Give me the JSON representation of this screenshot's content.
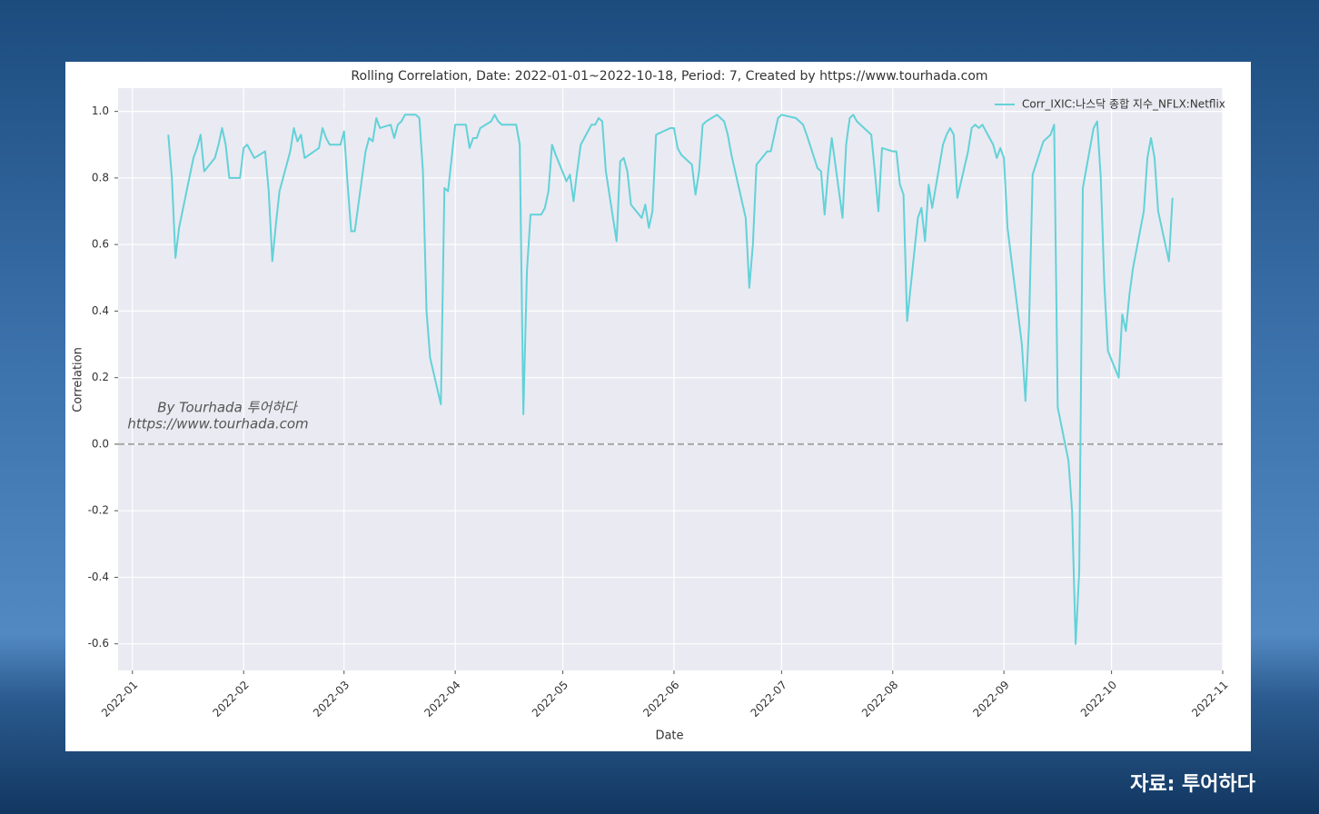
{
  "chart_data": {
    "type": "line",
    "title": "Rolling Correlation, Date: 2022-01-01~2022-10-18, Period: 7, Created by https://www.tourhada.com",
    "xlabel": "Date",
    "ylabel": "Correlation",
    "watermark": [
      "By Tourhada 투어하다",
      "https://www.tourhada.com"
    ],
    "source": "자료: 투어하다",
    "legend": "upper right",
    "grid": true,
    "hline": {
      "value": 0,
      "color": "#a8a8a8",
      "style": "dashed"
    },
    "xlim": [
      "2021-12-28",
      "2022-11-01"
    ],
    "xticks": [
      {
        "value": "2022-01-01",
        "label": "2022-01"
      },
      {
        "value": "2022-02-01",
        "label": "2022-02"
      },
      {
        "value": "2022-03-01",
        "label": "2022-03"
      },
      {
        "value": "2022-04-01",
        "label": "2022-04"
      },
      {
        "value": "2022-05-01",
        "label": "2022-05"
      },
      {
        "value": "2022-06-01",
        "label": "2022-06"
      },
      {
        "value": "2022-07-01",
        "label": "2022-07"
      },
      {
        "value": "2022-08-01",
        "label": "2022-08"
      },
      {
        "value": "2022-09-01",
        "label": "2022-09"
      },
      {
        "value": "2022-10-01",
        "label": "2022-10"
      },
      {
        "value": "2022-11-01",
        "label": "2022-11"
      }
    ],
    "ylim": [
      -0.68,
      1.07
    ],
    "yticks": [
      -0.6,
      -0.4,
      -0.2,
      {
        "value": 0,
        "label": "0.0"
      },
      0.2,
      0.4,
      0.6,
      0.8,
      {
        "value": 1,
        "label": "1.0"
      }
    ],
    "x": [
      "2022-01-11",
      "2022-01-12",
      "2022-01-13",
      "2022-01-14",
      "2022-01-18",
      "2022-01-19",
      "2022-01-20",
      "2022-01-21",
      "2022-01-24",
      "2022-01-25",
      "2022-01-26",
      "2022-01-27",
      "2022-01-28",
      "2022-01-31",
      "2022-02-01",
      "2022-02-02",
      "2022-02-03",
      "2022-02-04",
      "2022-02-07",
      "2022-02-08",
      "2022-02-09",
      "2022-02-10",
      "2022-02-11",
      "2022-02-14",
      "2022-02-15",
      "2022-02-16",
      "2022-02-17",
      "2022-02-18",
      "2022-02-22",
      "2022-02-23",
      "2022-02-24",
      "2022-02-25",
      "2022-02-28",
      "2022-03-01",
      "2022-03-02",
      "2022-03-03",
      "2022-03-04",
      "2022-03-07",
      "2022-03-08",
      "2022-03-09",
      "2022-03-10",
      "2022-03-11",
      "2022-03-14",
      "2022-03-15",
      "2022-03-16",
      "2022-03-17",
      "2022-03-18",
      "2022-03-21",
      "2022-03-22",
      "2022-03-23",
      "2022-03-24",
      "2022-03-25",
      "2022-03-28",
      "2022-03-29",
      "2022-03-30",
      "2022-03-31",
      "2022-04-01",
      "2022-04-04",
      "2022-04-05",
      "2022-04-06",
      "2022-04-07",
      "2022-04-08",
      "2022-04-11",
      "2022-04-12",
      "2022-04-13",
      "2022-04-14",
      "2022-04-18",
      "2022-04-19",
      "2022-04-20",
      "2022-04-21",
      "2022-04-22",
      "2022-04-25",
      "2022-04-26",
      "2022-04-27",
      "2022-04-28",
      "2022-04-29",
      "2022-05-02",
      "2022-05-03",
      "2022-05-04",
      "2022-05-05",
      "2022-05-06",
      "2022-05-09",
      "2022-05-10",
      "2022-05-11",
      "2022-05-12",
      "2022-05-13",
      "2022-05-16",
      "2022-05-17",
      "2022-05-18",
      "2022-05-19",
      "2022-05-20",
      "2022-05-23",
      "2022-05-24",
      "2022-05-25",
      "2022-05-26",
      "2022-05-27",
      "2022-05-31",
      "2022-06-01",
      "2022-06-02",
      "2022-06-03",
      "2022-06-06",
      "2022-06-07",
      "2022-06-08",
      "2022-06-09",
      "2022-06-10",
      "2022-06-13",
      "2022-06-14",
      "2022-06-15",
      "2022-06-16",
      "2022-06-17",
      "2022-06-21",
      "2022-06-22",
      "2022-06-23",
      "2022-06-24",
      "2022-06-27",
      "2022-06-28",
      "2022-06-29",
      "2022-06-30",
      "2022-07-01",
      "2022-07-05",
      "2022-07-06",
      "2022-07-07",
      "2022-07-08",
      "2022-07-11",
      "2022-07-12",
      "2022-07-13",
      "2022-07-14",
      "2022-07-15",
      "2022-07-18",
      "2022-07-19",
      "2022-07-20",
      "2022-07-21",
      "2022-07-22",
      "2022-07-25",
      "2022-07-26",
      "2022-07-27",
      "2022-07-28",
      "2022-07-29",
      "2022-08-01",
      "2022-08-02",
      "2022-08-03",
      "2022-08-04",
      "2022-08-05",
      "2022-08-08",
      "2022-08-09",
      "2022-08-10",
      "2022-08-11",
      "2022-08-12",
      "2022-08-15",
      "2022-08-16",
      "2022-08-17",
      "2022-08-18",
      "2022-08-19",
      "2022-08-22",
      "2022-08-23",
      "2022-08-24",
      "2022-08-25",
      "2022-08-26",
      "2022-08-29",
      "2022-08-30",
      "2022-08-31",
      "2022-09-01",
      "2022-09-02",
      "2022-09-06",
      "2022-09-07",
      "2022-09-08",
      "2022-09-09",
      "2022-09-12",
      "2022-09-13",
      "2022-09-14",
      "2022-09-15",
      "2022-09-16",
      "2022-09-19",
      "2022-09-20",
      "2022-09-21",
      "2022-09-22",
      "2022-09-23",
      "2022-09-26",
      "2022-09-27",
      "2022-09-28",
      "2022-09-29",
      "2022-09-30",
      "2022-10-03",
      "2022-10-04",
      "2022-10-05",
      "2022-10-06",
      "2022-10-07",
      "2022-10-10",
      "2022-10-11",
      "2022-10-12",
      "2022-10-13",
      "2022-10-14",
      "2022-10-17",
      "2022-10-18"
    ],
    "series": [
      {
        "name": "Corr_IXIC:나스닥 종합 지수_NFLX:Netflix",
        "color": "#62d2d8",
        "values": [
          0.93,
          0.8,
          0.56,
          0.65,
          0.86,
          0.89,
          0.93,
          0.82,
          0.86,
          0.9,
          0.95,
          0.9,
          0.8,
          0.8,
          0.89,
          0.9,
          0.88,
          0.86,
          0.88,
          0.76,
          0.55,
          0.66,
          0.76,
          0.88,
          0.95,
          0.91,
          0.93,
          0.86,
          0.89,
          0.95,
          0.92,
          0.9,
          0.9,
          0.94,
          0.78,
          0.64,
          0.64,
          0.88,
          0.92,
          0.91,
          0.98,
          0.95,
          0.96,
          0.92,
          0.96,
          0.97,
          0.99,
          0.99,
          0.98,
          0.82,
          0.4,
          0.26,
          0.12,
          0.77,
          0.76,
          0.86,
          0.96,
          0.96,
          0.89,
          0.92,
          0.92,
          0.95,
          0.97,
          0.99,
          0.97,
          0.96,
          0.96,
          0.9,
          0.09,
          0.52,
          0.69,
          0.69,
          0.71,
          0.76,
          0.9,
          0.87,
          0.79,
          0.81,
          0.73,
          0.82,
          0.9,
          0.96,
          0.96,
          0.98,
          0.97,
          0.82,
          0.61,
          0.85,
          0.86,
          0.82,
          0.72,
          0.68,
          0.72,
          0.65,
          0.7,
          0.93,
          0.95,
          0.95,
          0.89,
          0.87,
          0.84,
          0.75,
          0.82,
          0.96,
          0.97,
          0.99,
          0.98,
          0.97,
          0.93,
          0.87,
          0.68,
          0.47,
          0.6,
          0.84,
          0.88,
          0.88,
          0.93,
          0.98,
          0.99,
          0.98,
          0.97,
          0.96,
          0.93,
          0.83,
          0.82,
          0.69,
          0.82,
          0.92,
          0.68,
          0.9,
          0.98,
          0.99,
          0.97,
          0.94,
          0.93,
          0.82,
          0.7,
          0.89,
          0.88,
          0.88,
          0.78,
          0.75,
          0.37,
          0.68,
          0.71,
          0.61,
          0.78,
          0.71,
          0.9,
          0.93,
          0.95,
          0.93,
          0.74,
          0.88,
          0.95,
          0.96,
          0.95,
          0.96,
          0.9,
          0.86,
          0.89,
          0.86,
          0.65,
          0.3,
          0.13,
          0.36,
          0.81,
          0.91,
          0.92,
          0.93,
          0.96,
          0.11,
          -0.05,
          -0.2,
          -0.6,
          -0.38,
          0.77,
          0.95,
          0.97,
          0.8,
          0.48,
          0.28,
          0.2,
          0.39,
          0.34,
          0.45,
          0.53,
          0.7,
          0.86,
          0.92,
          0.86,
          0.7,
          0.55,
          0.74
        ]
      }
    ]
  }
}
